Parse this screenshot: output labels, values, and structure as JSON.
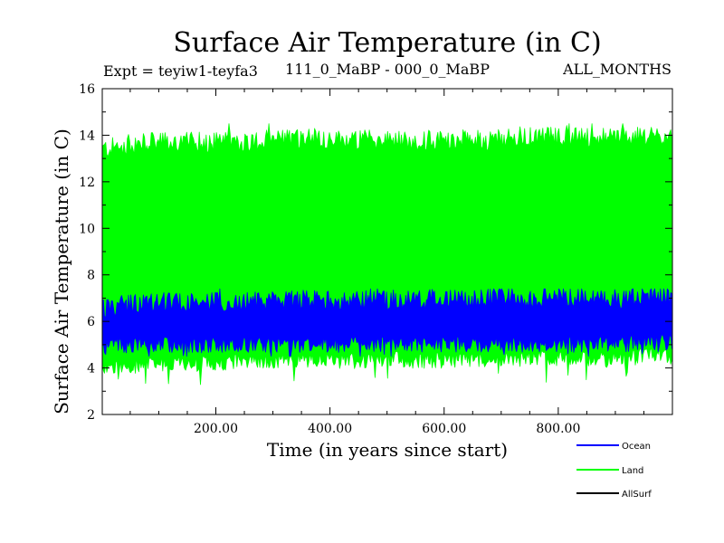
{
  "chart_data": {
    "type": "line",
    "title": "Surface Air Temperature (in C)",
    "experiment": "Expt = teyiw1-teyfa3",
    "period": "111_0_MaBP - 000_0_MaBP",
    "months": "ALL_MONTHS",
    "xlabel": "Time (in years since start)",
    "ylabel": "Surface Air Temperature (in C)",
    "xlim": [
      1,
      1000
    ],
    "ylim": [
      2,
      16
    ],
    "x_ticks": [
      200,
      400,
      600,
      800
    ],
    "x_tick_labels": [
      "200.00",
      "400.00",
      "600.00",
      "800.00"
    ],
    "y_ticks": [
      2,
      4,
      6,
      8,
      10,
      12,
      14,
      16
    ],
    "y_tick_labels": [
      "2",
      "4",
      "6",
      "8",
      "10",
      "12",
      "14",
      "16"
    ],
    "grid": false,
    "legend_position": "bottom-right",
    "series": [
      {
        "name": "Land",
        "color": "#00ff00",
        "description": "annual-cycle envelope",
        "x": [
          1,
          50,
          100,
          150,
          200,
          250,
          300,
          350,
          400,
          450,
          500,
          550,
          600,
          650,
          700,
          750,
          800,
          850,
          900,
          950,
          1000
        ],
        "max": [
          13.4,
          13.6,
          13.7,
          13.7,
          13.7,
          13.7,
          13.8,
          13.9,
          13.8,
          13.8,
          13.8,
          13.7,
          13.8,
          13.8,
          13.8,
          13.9,
          13.9,
          13.9,
          13.9,
          13.9,
          14.0
        ],
        "min": [
          4.0,
          4.1,
          4.2,
          4.2,
          4.2,
          4.3,
          4.3,
          4.3,
          4.3,
          4.3,
          4.4,
          4.3,
          4.3,
          4.4,
          4.4,
          4.4,
          4.4,
          4.4,
          4.4,
          4.5,
          4.5
        ],
        "peak_max": 14.5,
        "peak_min": 2.9
      },
      {
        "name": "Ocean",
        "color": "#0000ff",
        "description": "annual-cycle envelope",
        "x": [
          1,
          50,
          100,
          150,
          200,
          250,
          300,
          350,
          400,
          450,
          500,
          550,
          600,
          650,
          700,
          750,
          800,
          850,
          900,
          950,
          1000
        ],
        "max": [
          6.6,
          6.7,
          6.8,
          6.8,
          6.8,
          6.8,
          6.9,
          6.9,
          6.9,
          6.9,
          6.9,
          6.9,
          7.0,
          6.9,
          7.0,
          7.0,
          7.0,
          7.0,
          7.0,
          7.1,
          7.1
        ],
        "min": [
          4.9,
          5.0,
          5.0,
          5.0,
          5.0,
          5.0,
          5.0,
          5.0,
          5.0,
          5.0,
          5.0,
          5.0,
          5.0,
          5.0,
          5.0,
          5.0,
          5.0,
          5.0,
          5.0,
          5.1,
          5.1
        ],
        "peak_max": 7.4,
        "peak_min": 4.5
      },
      {
        "name": "AllSurf",
        "color": "#000000"
      }
    ]
  }
}
